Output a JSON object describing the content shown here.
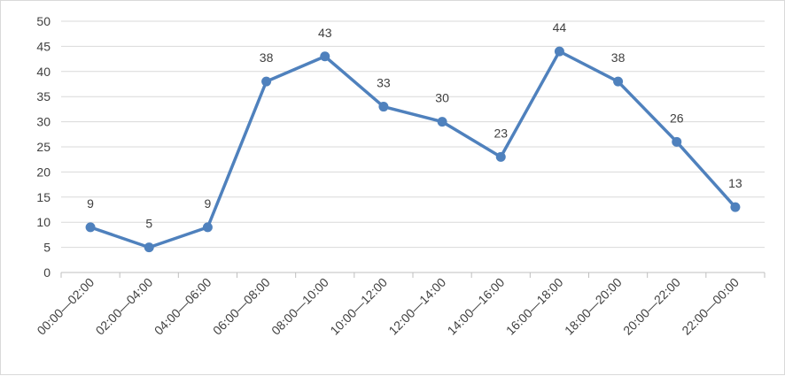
{
  "chart_data": {
    "type": "line",
    "title": "",
    "xlabel": "",
    "ylabel": "",
    "categories": [
      "00:00—02:00",
      "02:00—04:00",
      "04:00—06:00",
      "06:00—08:00",
      "08:00—10:00",
      "10:00—12:00",
      "12:00—14:00",
      "14:00—16:00",
      "16:00—18:00",
      "18:00—20:00",
      "20:00—22:00",
      "22:00—00:00"
    ],
    "values": [
      9,
      5,
      9,
      38,
      43,
      33,
      30,
      23,
      44,
      38,
      26,
      13
    ],
    "ylim": [
      0,
      50
    ],
    "yticks": [
      0,
      5,
      10,
      15,
      20,
      25,
      30,
      35,
      40,
      45,
      50
    ],
    "grid": true,
    "legend": "none",
    "data_labels": true,
    "colors": {
      "line": "#4f81bd",
      "grid": "#d9d9d9",
      "axis": "#bfbfbf",
      "text": "#404040"
    }
  }
}
